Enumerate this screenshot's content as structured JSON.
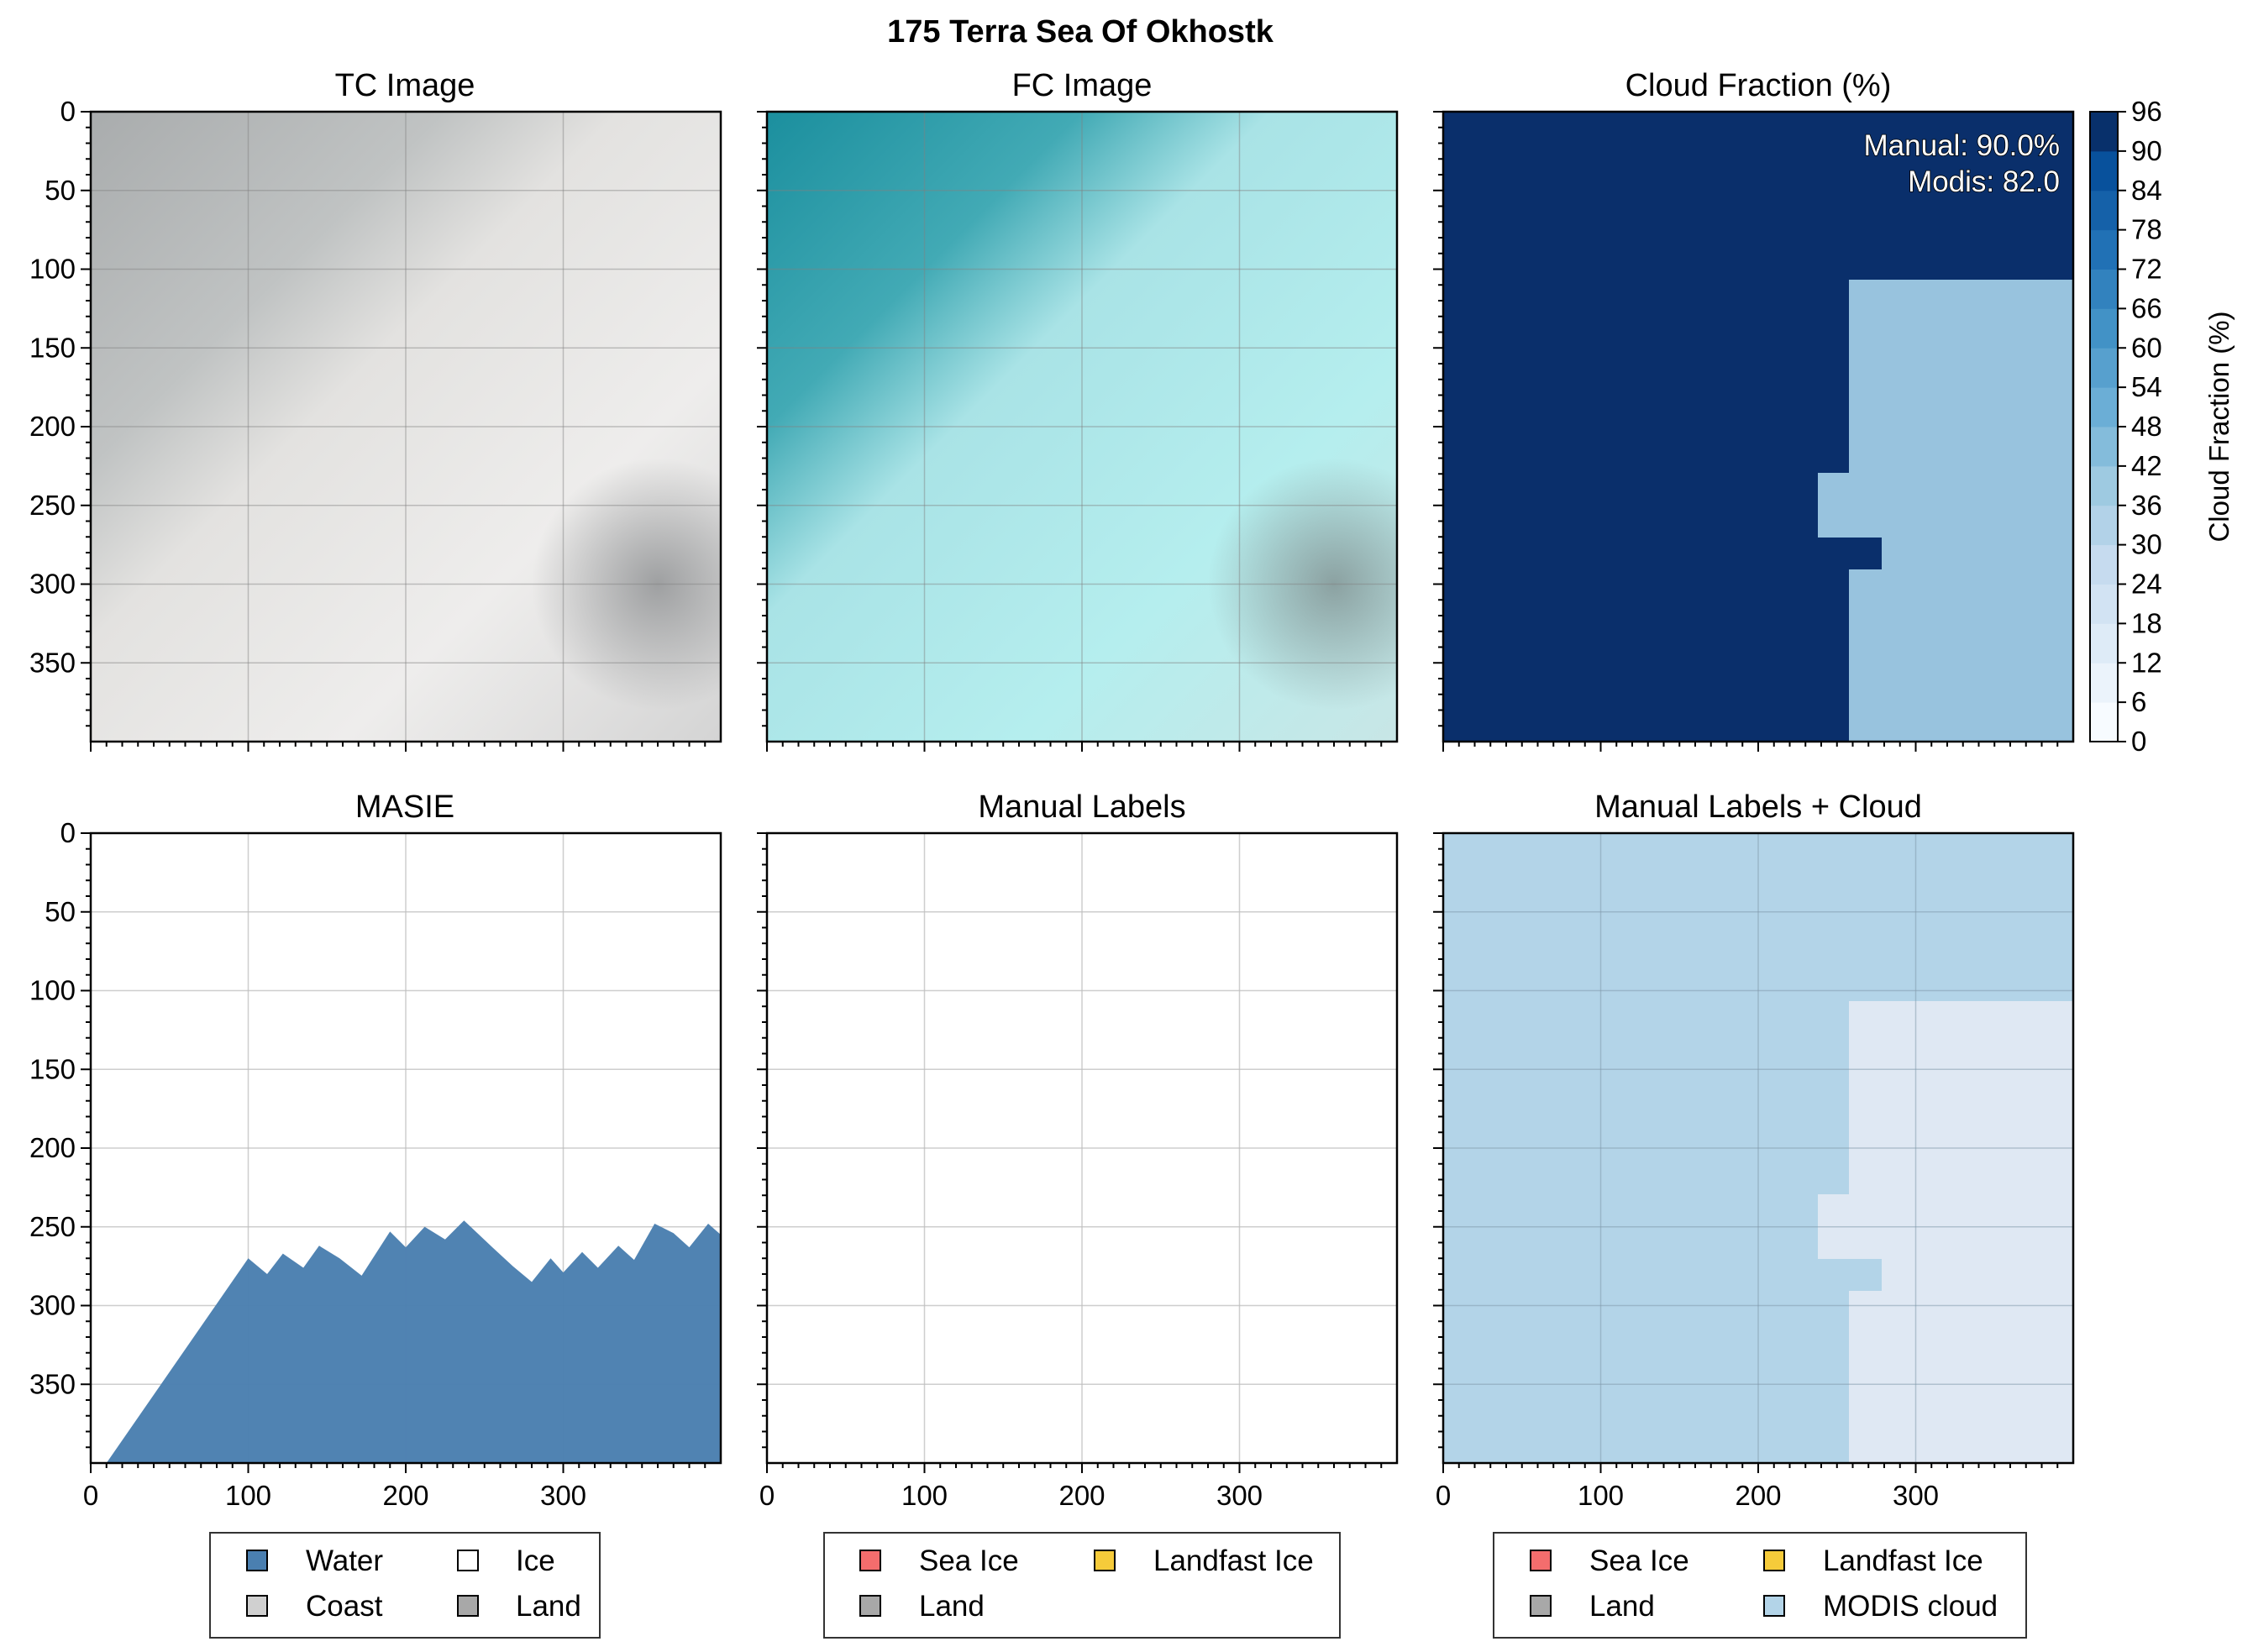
{
  "figure": {
    "title": "175 Terra Sea Of Okhostk"
  },
  "colors": {
    "water": "#4a7fb0",
    "ice": "#ffffff",
    "coast": "#d0d0d0",
    "land": "#a8a8a8",
    "sea_ice": "#f46d6d",
    "landfast_ice": "#f6cb3a",
    "modis_cloud": "#b3d4e8",
    "cloud_high": "#0a2f6b",
    "cloud_low": "#98c3de",
    "grid": "#cfcfcf"
  },
  "chart_data": [
    {
      "id": "tc",
      "type": "image",
      "title": "TC Image",
      "xlim": [
        0,
        400
      ],
      "ylim": [
        400,
        0
      ],
      "yticks": [
        0,
        50,
        100,
        150,
        200,
        250,
        300,
        350
      ],
      "xticks": [
        0,
        100,
        200,
        300
      ],
      "xtick_labels_shown": false
    },
    {
      "id": "fc",
      "type": "image",
      "title": "FC Image",
      "xlim": [
        0,
        400
      ],
      "ylim": [
        400,
        0
      ],
      "xticks": [
        0,
        100,
        200,
        300
      ],
      "xtick_labels_shown": false
    },
    {
      "id": "cloud",
      "type": "heatmap",
      "title": "Cloud Fraction (%)",
      "xlim": [
        0,
        400
      ],
      "ylim": [
        400,
        0
      ],
      "xticks": [
        0,
        100,
        200,
        300
      ],
      "xtick_labels_shown": false,
      "regions": [
        {
          "label": "high cloud fraction",
          "value_range": [
            90,
            96
          ]
        },
        {
          "label": "low cloud fraction",
          "value_range": [
            30,
            36
          ]
        }
      ],
      "annotations": [
        "Manual: 90.0%",
        "Modis: 82.0"
      ],
      "colorbar": {
        "label": "Cloud Fraction (%)",
        "ticks": [
          0,
          6,
          12,
          18,
          24,
          30,
          36,
          42,
          48,
          54,
          60,
          66,
          72,
          78,
          84,
          90,
          96
        ],
        "range": [
          0,
          96
        ],
        "colormap": "Blues"
      }
    },
    {
      "id": "masie",
      "type": "area",
      "title": "MASIE",
      "xlim": [
        0,
        400
      ],
      "ylim": [
        400,
        0
      ],
      "yticks": [
        0,
        50,
        100,
        150,
        200,
        250,
        300,
        350
      ],
      "xticks": [
        0,
        100,
        200,
        300
      ],
      "xtick_labels": [
        "0",
        "100",
        "200",
        "300"
      ],
      "series": [
        {
          "name": "Water",
          "x": [
            10,
            100,
            112,
            122,
            135,
            145,
            158,
            172,
            190,
            200,
            212,
            225,
            237,
            255,
            268,
            280,
            292,
            300,
            312,
            322,
            335,
            345,
            358,
            370,
            380,
            392,
            400
          ],
          "y": [
            400,
            270,
            280,
            267,
            276,
            262,
            270,
            281,
            253,
            263,
            250,
            258,
            246,
            263,
            275,
            285,
            270,
            279,
            266,
            276,
            262,
            271,
            248,
            254,
            263,
            248,
            255
          ]
        }
      ],
      "legend": [
        "Water",
        "Ice",
        "Coast",
        "Land"
      ]
    },
    {
      "id": "manual",
      "type": "heatmap",
      "title": "Manual Labels",
      "xlim": [
        0,
        400
      ],
      "ylim": [
        400,
        0
      ],
      "xticks": [
        0,
        100,
        200,
        300
      ],
      "xtick_labels": [
        "0",
        "100",
        "200",
        "300"
      ],
      "legend": [
        "Sea Ice",
        "Landfast Ice",
        "Land"
      ]
    },
    {
      "id": "manual_cloud",
      "type": "heatmap",
      "title": "Manual Labels + Cloud",
      "xlim": [
        0,
        400
      ],
      "ylim": [
        400,
        0
      ],
      "xticks": [
        0,
        100,
        200,
        300
      ],
      "xtick_labels": [
        "0",
        "100",
        "200",
        "300"
      ],
      "legend": [
        "Sea Ice",
        "Landfast Ice",
        "Land",
        "MODIS cloud"
      ]
    }
  ]
}
